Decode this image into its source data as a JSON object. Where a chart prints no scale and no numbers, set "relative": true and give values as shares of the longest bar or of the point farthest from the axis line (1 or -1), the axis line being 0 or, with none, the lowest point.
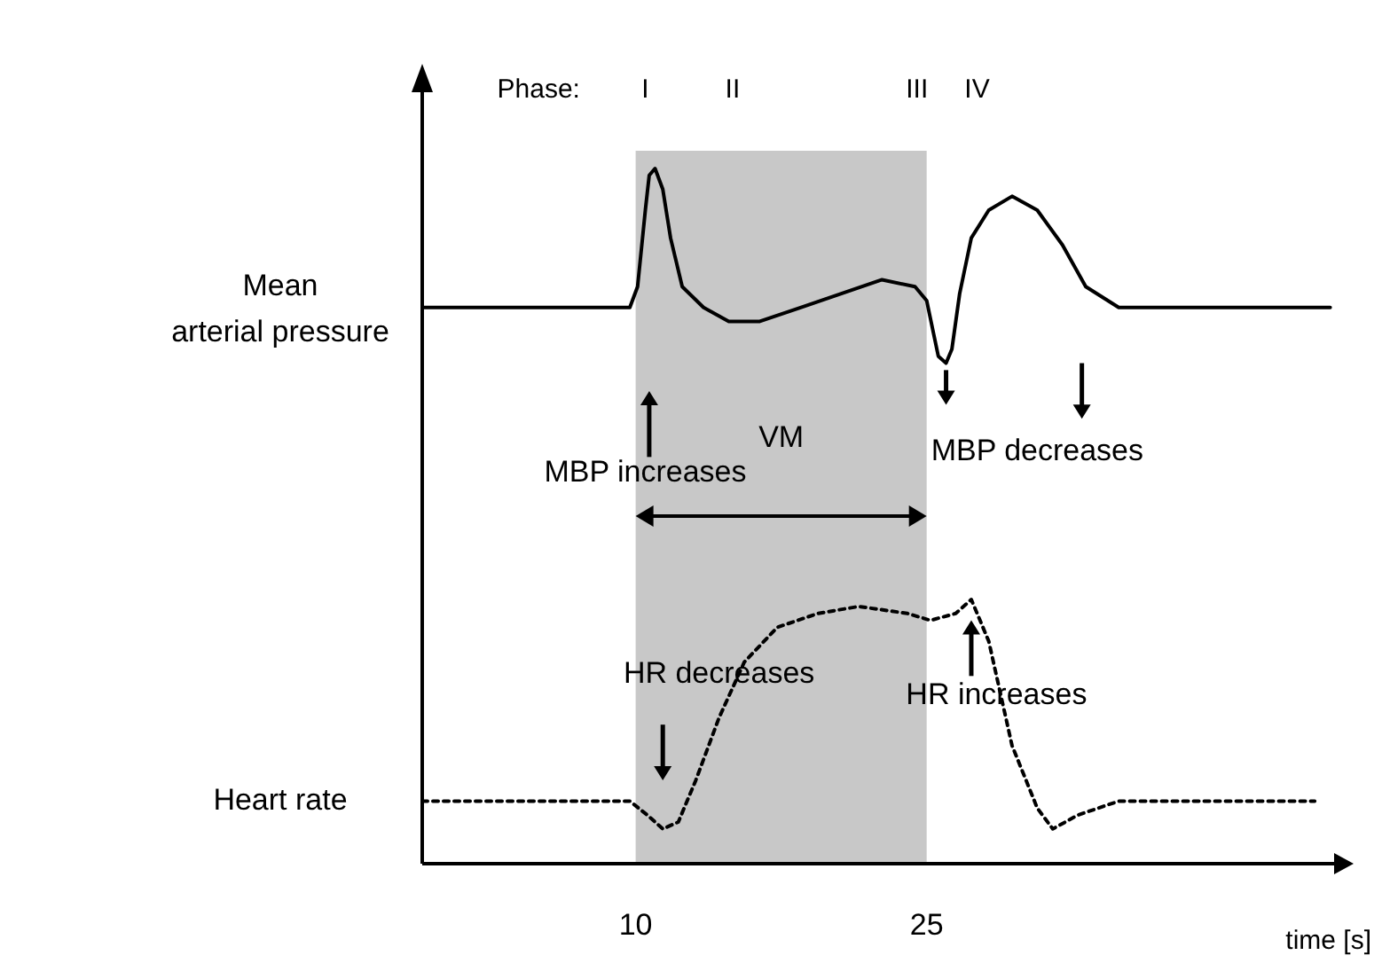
{
  "chart_data": {
    "type": "line",
    "relative": true,
    "xlabel": "time [s]",
    "xlim": [
      -1,
      46
    ],
    "xticks": [
      10,
      25
    ],
    "tick_labels": "x",
    "grid": false,
    "legend": false,
    "marker": "none",
    "series": [
      {
        "name": "Mean arterial pressure",
        "color": "#000000",
        "line_style": "solid",
        "x": [
          -1,
          9.7,
          10.1,
          10.5,
          10.7,
          11.0,
          11.4,
          11.8,
          12.4,
          13.5,
          14.8,
          16.4,
          18.5,
          20.6,
          22.7,
          24.4,
          25,
          25.3,
          25.6,
          26,
          26.3,
          26.7,
          27.3,
          28.2,
          29.4,
          30.7,
          32,
          33.2,
          34.9,
          45.8
        ],
        "values": [
          0.8,
          0.8,
          0.83,
          0.94,
          0.99,
          1.0,
          0.97,
          0.9,
          0.83,
          0.8,
          0.78,
          0.78,
          0.8,
          0.82,
          0.84,
          0.83,
          0.81,
          0.77,
          0.73,
          0.72,
          0.74,
          0.82,
          0.9,
          0.94,
          0.96,
          0.94,
          0.89,
          0.83,
          0.8,
          0.8
        ]
      },
      {
        "name": "Heart rate",
        "color": "#000000",
        "line_style": "dotted",
        "x": [
          -1,
          9.7,
          10.6,
          11.4,
          12.2,
          13.1,
          14.3,
          15.6,
          17.3,
          19.4,
          21.5,
          24,
          25.2,
          26.5,
          27.3,
          28.2,
          29.4,
          30.7,
          31.5,
          32.8,
          34.9,
          45
        ],
        "values": [
          0.09,
          0.09,
          0.07,
          0.05,
          0.06,
          0.12,
          0.21,
          0.29,
          0.34,
          0.36,
          0.37,
          0.36,
          0.35,
          0.36,
          0.38,
          0.32,
          0.17,
          0.08,
          0.05,
          0.07,
          0.09,
          0.09
        ]
      }
    ],
    "bands": [
      {
        "axis": "x",
        "from": 10,
        "to": 25,
        "label": "VM",
        "color": "#c8c8c8"
      }
    ],
    "annotations": [
      "Phase:",
      "I",
      "II",
      "III",
      "IV",
      "MBP increases",
      "MBP decreases",
      "HR decreases",
      "HR increases"
    ]
  }
}
